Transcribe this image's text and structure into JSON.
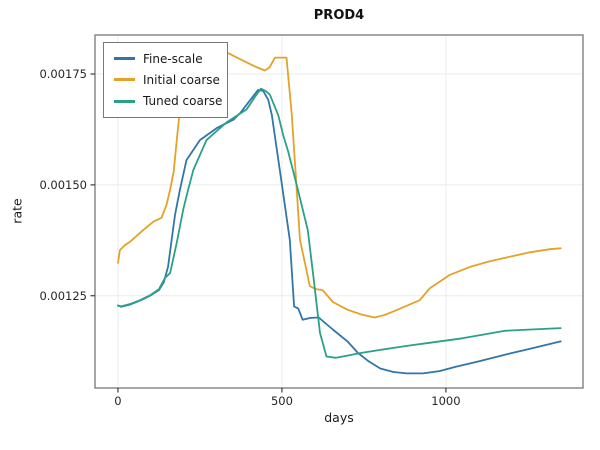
{
  "chart_data": {
    "type": "line",
    "title": "PROD4",
    "xlabel": "days",
    "ylabel": "rate",
    "xlim": [
      -70,
      1418
    ],
    "ylim": [
      0.001042,
      0.001838
    ],
    "grid": true,
    "legend_position": "upper-left",
    "frame_color": "#808080",
    "grid_color": "#ebebeb",
    "xticks": {
      "values": [
        0,
        500,
        1000
      ],
      "labels": [
        "0",
        "500",
        "1000"
      ]
    },
    "yticks": {
      "values": [
        0.00125,
        0.0015,
        0.00175
      ],
      "labels": [
        "0.00125",
        "0.00150",
        "0.00175"
      ]
    },
    "series": [
      {
        "name": "Fine-scale",
        "color": "#3276A8",
        "points": [
          [
            0,
            0.001228
          ],
          [
            10,
            0.001225
          ],
          [
            40,
            0.001231
          ],
          [
            70,
            0.00124
          ],
          [
            100,
            0.001251
          ],
          [
            125,
            0.001263
          ],
          [
            140,
            0.001281
          ],
          [
            153,
            0.001316
          ],
          [
            164,
            0.001377
          ],
          [
            174,
            0.001432
          ],
          [
            189,
            0.001489
          ],
          [
            209,
            0.001556
          ],
          [
            250,
            0.001601
          ],
          [
            301,
            0.001628
          ],
          [
            352,
            0.001647
          ],
          [
            374,
            0.001663
          ],
          [
            403,
            0.001691
          ],
          [
            427,
            0.001714
          ],
          [
            443,
            0.001712
          ],
          [
            458,
            0.001692
          ],
          [
            469,
            0.001658
          ],
          [
            497,
            0.001515
          ],
          [
            524,
            0.001376
          ],
          [
            537,
            0.001226
          ],
          [
            550,
            0.001221
          ],
          [
            563,
            0.001196
          ],
          [
            587,
            0.0012
          ],
          [
            612,
            0.001201
          ],
          [
            655,
            0.001174
          ],
          [
            700,
            0.001147
          ],
          [
            732,
            0.001121
          ],
          [
            765,
            0.001102
          ],
          [
            800,
            0.001086
          ],
          [
            840,
            0.001078
          ],
          [
            880,
            0.001075
          ],
          [
            930,
            0.001075
          ],
          [
            980,
            0.00108
          ],
          [
            1030,
            0.00109
          ],
          [
            1100,
            0.001102
          ],
          [
            1180,
            0.001117
          ],
          [
            1260,
            0.001131
          ],
          [
            1350,
            0.001147
          ]
        ]
      },
      {
        "name": "Initial coarse",
        "color": "#E4A229",
        "points": [
          [
            0,
            0.001324
          ],
          [
            6,
            0.001353
          ],
          [
            21,
            0.001364
          ],
          [
            37,
            0.001372
          ],
          [
            77,
            0.001398
          ],
          [
            108,
            0.001417
          ],
          [
            133,
            0.001426
          ],
          [
            148,
            0.001455
          ],
          [
            159,
            0.001489
          ],
          [
            170,
            0.00153
          ],
          [
            182,
            0.00162
          ],
          [
            198,
            0.001733
          ],
          [
            225,
            0.001772
          ],
          [
            260,
            0.001787
          ],
          [
            300,
            0.001793
          ],
          [
            336,
            0.001797
          ],
          [
            387,
            0.001778
          ],
          [
            418,
            0.001767
          ],
          [
            448,
            0.001758
          ],
          [
            462,
            0.001765
          ],
          [
            479,
            0.001787
          ],
          [
            514,
            0.001787
          ],
          [
            530,
            0.001658
          ],
          [
            555,
            0.001376
          ],
          [
            585,
            0.001272
          ],
          [
            600,
            0.001266
          ],
          [
            625,
            0.001262
          ],
          [
            655,
            0.001236
          ],
          [
            701,
            0.001218
          ],
          [
            745,
            0.001207
          ],
          [
            783,
            0.001201
          ],
          [
            815,
            0.001207
          ],
          [
            851,
            0.001218
          ],
          [
            920,
            0.00124
          ],
          [
            951,
            0.001267
          ],
          [
            1012,
            0.001297
          ],
          [
            1073,
            0.001315
          ],
          [
            1134,
            0.001328
          ],
          [
            1195,
            0.001338
          ],
          [
            1256,
            0.001348
          ],
          [
            1317,
            0.001355
          ],
          [
            1350,
            0.001357
          ]
        ]
      },
      {
        "name": "Tuned coarse",
        "color": "#2AA187",
        "points": [
          [
            0,
            0.001228
          ],
          [
            10,
            0.001226
          ],
          [
            40,
            0.001232
          ],
          [
            70,
            0.001241
          ],
          [
            100,
            0.001252
          ],
          [
            125,
            0.001265
          ],
          [
            143,
            0.00129
          ],
          [
            159,
            0.001301
          ],
          [
            179,
            0.001369
          ],
          [
            199,
            0.001444
          ],
          [
            214,
            0.001489
          ],
          [
            230,
            0.001534
          ],
          [
            270,
            0.001601
          ],
          [
            331,
            0.001641
          ],
          [
            392,
            0.00167
          ],
          [
            420,
            0.001701
          ],
          [
            436,
            0.001717
          ],
          [
            450,
            0.001712
          ],
          [
            463,
            0.001704
          ],
          [
            474,
            0.001684
          ],
          [
            489,
            0.001657
          ],
          [
            504,
            0.001612
          ],
          [
            519,
            0.001575
          ],
          [
            549,
            0.001488
          ],
          [
            579,
            0.001398
          ],
          [
            598,
            0.00128
          ],
          [
            616,
            0.001166
          ],
          [
            636,
            0.001113
          ],
          [
            665,
            0.00111
          ],
          [
            700,
            0.001115
          ],
          [
            740,
            0.001121
          ],
          [
            800,
            0.001128
          ],
          [
            845,
            0.001133
          ],
          [
            900,
            0.001139
          ],
          [
            950,
            0.001144
          ],
          [
            1050,
            0.001154
          ],
          [
            1120,
            0.001163
          ],
          [
            1180,
            0.001171
          ],
          [
            1260,
            0.001174
          ],
          [
            1350,
            0.001177
          ]
        ]
      }
    ]
  }
}
